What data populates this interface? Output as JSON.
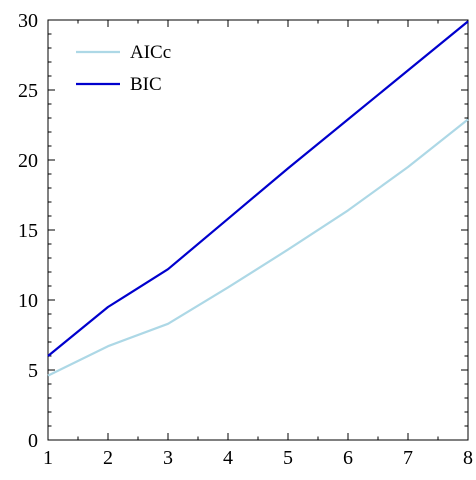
{
  "chart_data": {
    "type": "line",
    "title": "",
    "xlabel": "",
    "ylabel": "",
    "xlim": [
      1,
      8
    ],
    "ylim": [
      0,
      30
    ],
    "x_ticks": [
      1,
      2,
      3,
      4,
      5,
      6,
      7,
      8
    ],
    "y_ticks": [
      0,
      5,
      10,
      15,
      20,
      25,
      30
    ],
    "grid": false,
    "legend_position": "top-left",
    "series": [
      {
        "name": "AICc",
        "color": "#add8e6",
        "x": [
          1,
          2,
          3,
          4,
          5,
          6,
          7,
          8
        ],
        "y": [
          4.6,
          6.7,
          8.3,
          10.9,
          13.6,
          16.4,
          19.5,
          22.9
        ]
      },
      {
        "name": "BIC",
        "color": "#0000cd",
        "x": [
          1,
          2,
          3,
          4,
          5,
          6,
          7,
          8
        ],
        "y": [
          6.0,
          9.5,
          12.2,
          15.8,
          19.4,
          22.9,
          26.4,
          29.9
        ]
      }
    ]
  }
}
